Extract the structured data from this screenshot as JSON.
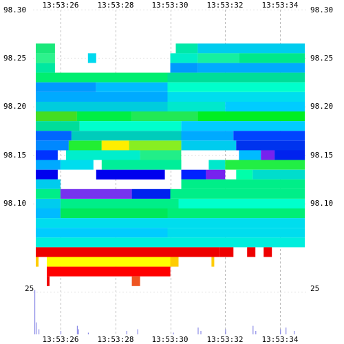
{
  "chart_data": {
    "type": "heatmap",
    "title": "",
    "xlabel": "",
    "ylabel": "",
    "x_ticks": [
      "13:53:26",
      "13:53:28",
      "13:53:30",
      "13:53:32",
      "13:53:34"
    ],
    "y_ticks_left": [
      "98.30",
      "98.25",
      "98.20",
      "98.15",
      "98.10"
    ],
    "y_ticks_right": [
      "98.30",
      "98.25",
      "98.20",
      "98.15",
      "98.10"
    ],
    "volume_tick": "25",
    "x_range": [
      "13:53:25",
      "13:53:35"
    ],
    "price_range": [
      98.08,
      98.3
    ],
    "price_rows": [
      {
        "price": 98.26,
        "segments": [
          [
            "13:53:25.1",
            "13:53:25.8",
            "#19e87a"
          ],
          [
            "13:53:30.2",
            "13:53:31.0",
            "#00e8a8"
          ],
          [
            "13:53:31.0",
            "13:53:34.9",
            "#00ccee"
          ]
        ]
      },
      {
        "price": 98.25,
        "segments": [
          [
            "13:53:25.1",
            "13:53:25.8",
            "#2df28c"
          ],
          [
            "13:53:27.0",
            "13:53:27.3",
            "#00d9ee"
          ],
          [
            "13:53:30.0",
            "13:53:31.0",
            "#00eec8"
          ],
          [
            "13:53:31.0",
            "13:53:32.5",
            "#16f0a0"
          ],
          [
            "13:53:32.5",
            "13:53:34.9",
            "#00e88a"
          ]
        ]
      },
      {
        "price": 98.24,
        "segments": [
          [
            "13:53:25.1",
            "13:53:25.8",
            "#00e8a0"
          ],
          [
            "13:53:30.0",
            "13:53:31.0",
            "#0099ff"
          ],
          [
            "13:53:31.0",
            "13:53:34.9",
            "#00aaff"
          ]
        ]
      },
      {
        "price": 98.23,
        "segments": [
          [
            "13:53:25.1",
            "13:53:29.9",
            "#00ee70"
          ],
          [
            "13:53:29.9",
            "13:53:34.9",
            "#00dd99"
          ]
        ]
      },
      {
        "price": 98.22,
        "segments": [
          [
            "13:53:25.1",
            "13:53:27.3",
            "#0099ff"
          ],
          [
            "13:53:27.3",
            "13:53:29.9",
            "#00bbff"
          ],
          [
            "13:53:29.9",
            "13:53:34.9",
            "#00ffcc"
          ]
        ]
      },
      {
        "price": 98.21,
        "segments": [
          [
            "13:53:25.1",
            "13:53:29.9",
            "#00aaff"
          ],
          [
            "13:53:29.9",
            "13:53:34.9",
            "#00ddee"
          ]
        ]
      },
      {
        "price": 98.2,
        "segments": [
          [
            "13:53:25.1",
            "13:53:29.9",
            "#00ccdd"
          ],
          [
            "13:53:29.9",
            "13:53:32.0",
            "#00e8cc"
          ],
          [
            "13:53:32.0",
            "13:53:34.9",
            "#00ccff"
          ]
        ]
      },
      {
        "price": 98.19,
        "segments": [
          [
            "13:53:25.1",
            "13:53:26.6",
            "#44dd22"
          ],
          [
            "13:53:26.6",
            "13:53:28.6",
            "#00ee44"
          ],
          [
            "13:53:28.6",
            "13:53:31.0",
            "#22e855"
          ],
          [
            "13:53:31.0",
            "13:53:34.9",
            "#00ee22"
          ]
        ]
      },
      {
        "price": 98.18,
        "segments": [
          [
            "13:53:25.1",
            "13:53:26.7",
            "#00dd99"
          ],
          [
            "13:53:26.7",
            "13:53:30.4",
            "#00ffcc"
          ],
          [
            "13:53:30.4",
            "13:53:34.9",
            "#00ccff"
          ]
        ]
      },
      {
        "price": 98.17,
        "segments": [
          [
            "13:53:25.1",
            "13:53:26.4",
            "#0066ff"
          ],
          [
            "13:53:26.4",
            "13:53:30.4",
            "#00ccbb"
          ],
          [
            "13:53:30.4",
            "13:53:32.3",
            "#00aaff"
          ],
          [
            "13:53:32.3",
            "13:53:34.9",
            "#0044ff"
          ]
        ]
      },
      {
        "price": 98.16,
        "segments": [
          [
            "13:53:25.1",
            "13:53:26.3",
            "#0088ff"
          ],
          [
            "13:53:26.3",
            "13:53:27.5",
            "#22ee33"
          ],
          [
            "13:53:27.5",
            "13:53:28.5",
            "#ffee00"
          ],
          [
            "13:53:28.5",
            "13:53:30.4",
            "#88ee22"
          ],
          [
            "13:53:30.4",
            "13:53:32.4",
            "#00ccee"
          ],
          [
            "13:53:32.4",
            "13:53:34.9",
            "#0033ee"
          ]
        ]
      },
      {
        "price": 98.15,
        "segments": [
          [
            "13:53:25.1",
            "13:53:25.9",
            "#0033ff"
          ],
          [
            "13:53:26.2",
            "13:53:28.9",
            "#00eecc"
          ],
          [
            "13:53:28.9",
            "13:53:30.4",
            "#22ee88"
          ],
          [
            "13:53:32.5",
            "13:53:33.3",
            "#00bbff"
          ],
          [
            "13:53:33.3",
            "13:53:33.8",
            "#7722ee"
          ],
          [
            "13:53:33.8",
            "13:53:34.9",
            "#0022ee"
          ]
        ]
      },
      {
        "price": 98.14,
        "segments": [
          [
            "13:53:25.1",
            "13:53:26.0",
            "#00aaff"
          ],
          [
            "13:53:26.0",
            "13:53:27.2",
            "#00ddee"
          ],
          [
            "13:53:27.5",
            "13:53:30.4",
            "#00ee99"
          ],
          [
            "13:53:31.4",
            "13:53:32.0",
            "#00e8cc"
          ],
          [
            "13:53:32.0",
            "13:53:34.9",
            "#22ee44"
          ]
        ]
      },
      {
        "price": 98.13,
        "segments": [
          [
            "13:53:25.1",
            "13:53:25.9",
            "#0000ee"
          ],
          [
            "13:53:27.3",
            "13:53:29.8",
            "#0000ee"
          ],
          [
            "13:53:30.4",
            "13:53:31.3",
            "#0022ff"
          ],
          [
            "13:53:31.3",
            "13:53:32.0",
            "#7722ee"
          ],
          [
            "13:53:32.4",
            "13:53:33.0",
            "#00ffaa"
          ],
          [
            "13:53:33.0",
            "13:53:34.9",
            "#00ddcc"
          ]
        ]
      },
      {
        "price": 98.12,
        "segments": [
          [
            "13:53:25.1",
            "13:53:26.0",
            "#00ccee"
          ],
          [
            "13:53:30.4",
            "13:53:34.9",
            "#00ee88"
          ]
        ]
      },
      {
        "price": 98.11,
        "segments": [
          [
            "13:53:25.1",
            "13:53:26.0",
            "#00ee88"
          ],
          [
            "13:53:26.0",
            "13:53:28.6",
            "#7733ee"
          ],
          [
            "13:53:28.6",
            "13:53:30.0",
            "#0022ee"
          ],
          [
            "13:53:30.0",
            "13:53:34.9",
            "#00ee88"
          ]
        ]
      },
      {
        "price": 98.1,
        "segments": [
          [
            "13:53:25.1",
            "13:53:26.0",
            "#00ccee"
          ],
          [
            "13:53:26.0",
            "13:53:30.3",
            "#00ee88"
          ],
          [
            "13:53:30.3",
            "13:53:34.9",
            "#00ffcc"
          ]
        ]
      },
      {
        "price": 98.09,
        "segments": [
          [
            "13:53:25.1",
            "13:53:26.0",
            "#00bbff"
          ],
          [
            "13:53:26.0",
            "13:53:29.9",
            "#00e85a"
          ],
          [
            "13:53:29.9",
            "13:53:34.9",
            "#00ee77"
          ]
        ]
      },
      {
        "price": 98.08,
        "segments": [
          [
            "13:53:25.1",
            "13:53:34.9",
            "#00ddee"
          ]
        ]
      }
    ],
    "lower_bands": [
      {
        "segments": [
          [
            "13:53:25.1",
            "13:53:29.9",
            "#00ccff"
          ],
          [
            "13:53:29.9",
            "13:53:34.9",
            "#00ddee"
          ]
        ]
      },
      {
        "segments": [
          [
            "13:53:25.1",
            "13:53:34.9",
            "#00eedd"
          ]
        ]
      },
      {
        "segments": [
          [
            "13:53:25.1",
            "13:53:31.8",
            "#ee0000"
          ],
          [
            "13:53:31.8",
            "13:53:32.3",
            "#ee0000"
          ],
          [
            "13:53:32.8",
            "13:53:33.1",
            "#ee0000"
          ],
          [
            "13:53:33.4",
            "13:53:33.7",
            "#ee0000"
          ]
        ]
      },
      {
        "segments": [
          [
            "13:53:25.1",
            "13:53:25.2",
            "#ffcc00"
          ],
          [
            "13:53:25.5",
            "13:53:30.0",
            "#ffff00"
          ],
          [
            "13:53:30.0",
            "13:53:30.3",
            "#ffcc00"
          ],
          [
            "13:53:31.5",
            "13:53:31.6",
            "#ffcc00"
          ]
        ]
      },
      {
        "segments": [
          [
            "13:53:25.5",
            "13:53:30.0",
            "#ff0000"
          ]
        ]
      },
      {
        "segments": [
          [
            "13:53:25.5",
            "13:53:25.6",
            "#ee0000"
          ],
          [
            "13:53:28.6",
            "13:53:28.9",
            "#ee5522"
          ]
        ]
      }
    ],
    "volume_range": [
      0,
      30
    ],
    "volume_bars": [
      {
        "t": "13:53:25.05",
        "v": 26
      },
      {
        "t": "13:53:25.10",
        "v": 7
      },
      {
        "t": "13:53:25.20",
        "v": 3
      },
      {
        "t": "13:53:26.00",
        "v": 2
      },
      {
        "t": "13:53:26.60",
        "v": 5
      },
      {
        "t": "13:53:26.65",
        "v": 3
      },
      {
        "t": "13:53:27.00",
        "v": 1
      },
      {
        "t": "13:53:28.40",
        "v": 2
      },
      {
        "t": "13:53:28.80",
        "v": 3
      },
      {
        "t": "13:53:30.10",
        "v": 1
      },
      {
        "t": "13:53:31.00",
        "v": 4
      },
      {
        "t": "13:53:31.10",
        "v": 2
      },
      {
        "t": "13:53:32.00",
        "v": 3
      },
      {
        "t": "13:53:33.00",
        "v": 5
      },
      {
        "t": "13:53:33.10",
        "v": 2
      },
      {
        "t": "13:53:34.00",
        "v": 3
      },
      {
        "t": "13:53:34.20",
        "v": 4
      },
      {
        "t": "13:53:34.50",
        "v": 2
      }
    ],
    "grid": true
  }
}
